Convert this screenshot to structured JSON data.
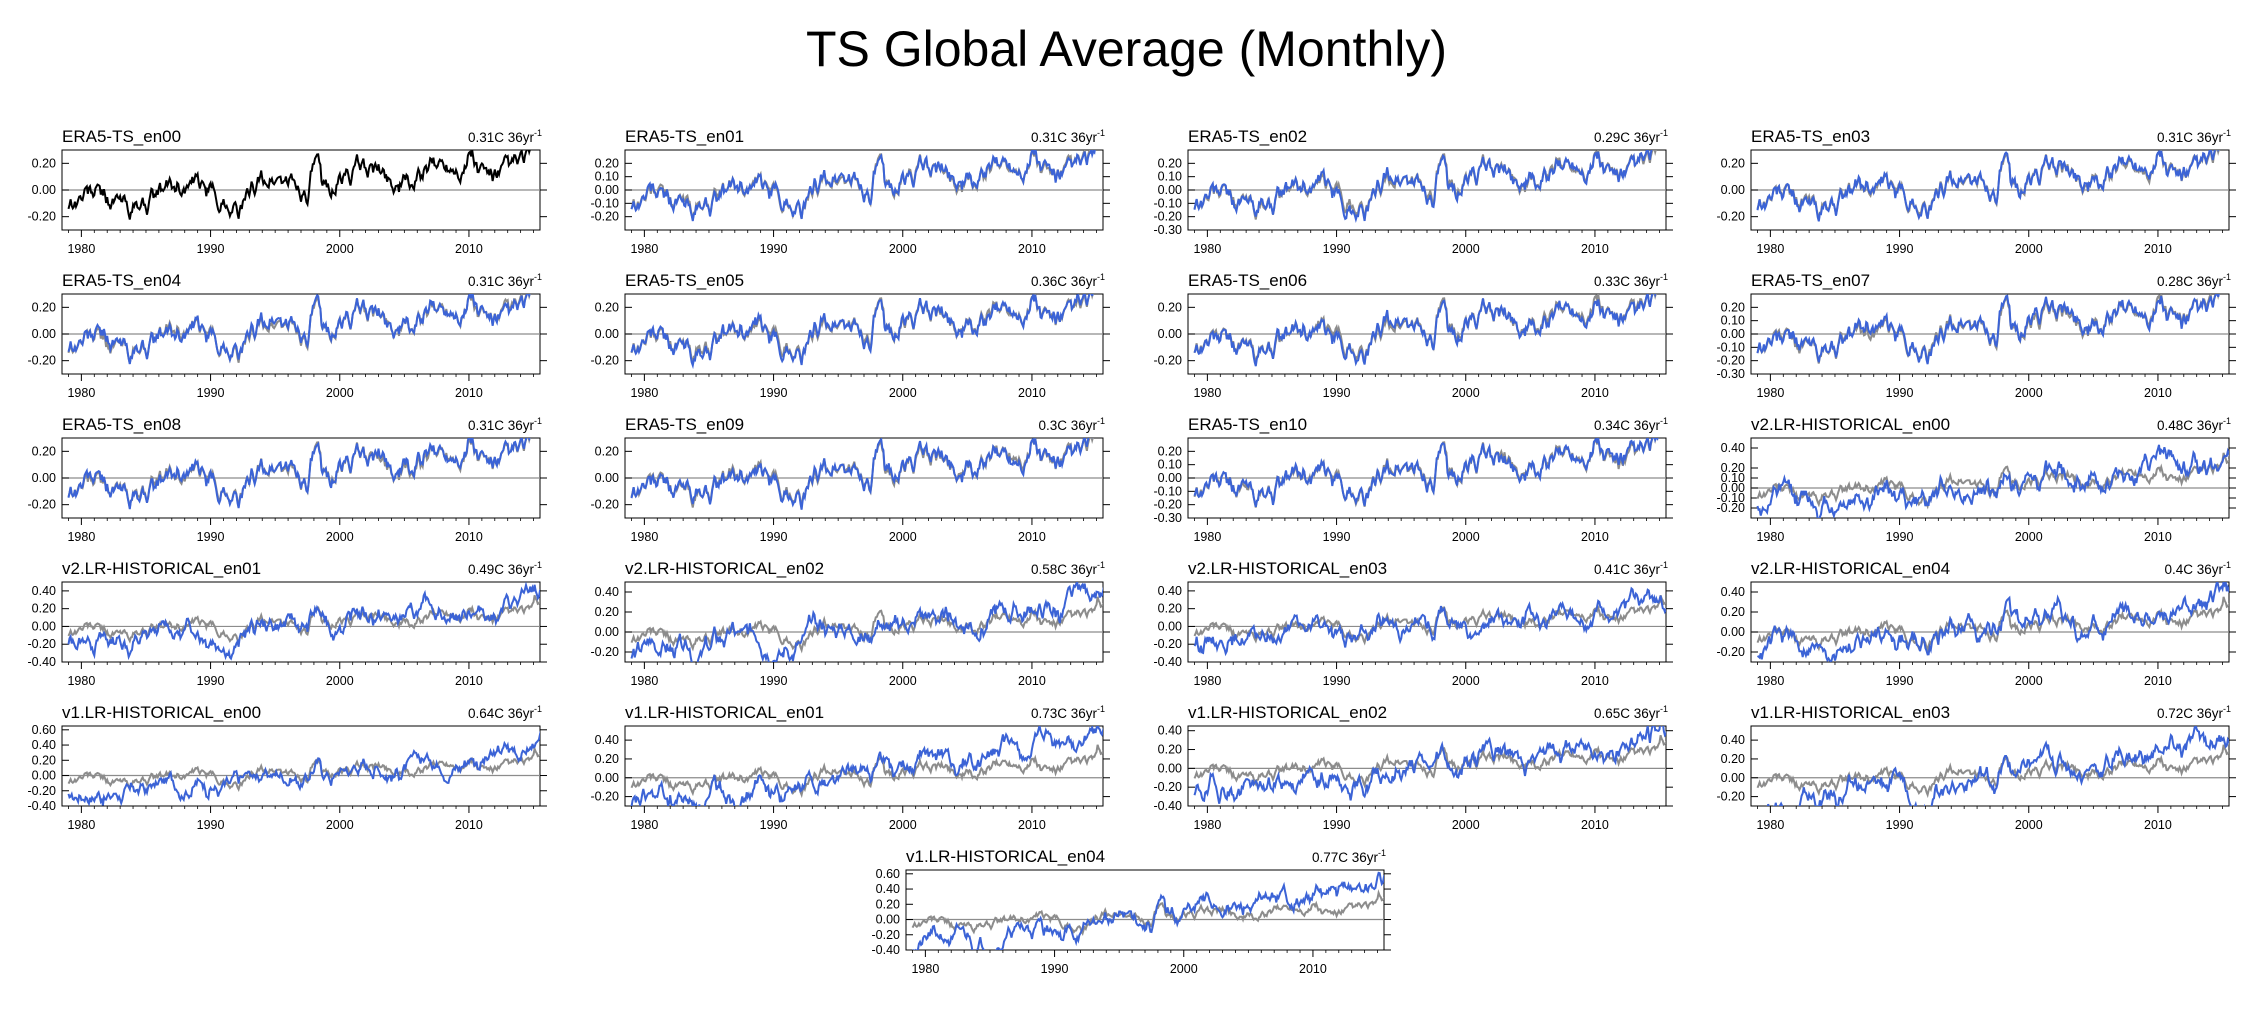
{
  "title": "TS Global Average (Monthly)",
  "colors": {
    "reference": "#000000",
    "ensemble": "#3b63d6",
    "background_ref": "#8c8c8c",
    "zero_line": "#8c8c8c"
  },
  "chart_data": {
    "type": "line",
    "x_range": [
      1978.5,
      2015.5
    ],
    "x_ticks": [
      1980,
      1990,
      2000,
      2010
    ],
    "x_ticks_labels": [
      "1980",
      "1990",
      "2000",
      "2010"
    ],
    "trend_units": "C 36yr",
    "trend_exp": "-1",
    "panels": [
      {
        "id": "ERA5-TS_en00",
        "title": "ERA5-TS_en00",
        "trend": "0.31",
        "trend_label": "0.31C 36yr",
        "y_range": [
          -0.3,
          0.3
        ],
        "y_ticks": [
          -0.2,
          0,
          0.2
        ],
        "y_tick_labels": [
          "-0.20",
          "0.00",
          "0.20"
        ],
        "series_kind": "reference",
        "bg_series": false,
        "drift": 0.0,
        "amp": 1.0,
        "seed": 1
      },
      {
        "id": "ERA5-TS_en01",
        "title": "ERA5-TS_en01",
        "trend": "0.31",
        "trend_label": "0.31C 36yr",
        "y_range": [
          -0.3,
          0.3
        ],
        "y_ticks": [
          -0.2,
          -0.1,
          0,
          0.1,
          0.2
        ],
        "y_tick_labels": [
          "-0.20",
          "-0.10",
          "0.00",
          "0.10",
          "0.20"
        ],
        "series_kind": "era",
        "bg_series": true,
        "drift": 0.0,
        "amp": 1.0,
        "seed": 2
      },
      {
        "id": "ERA5-TS_en02",
        "title": "ERA5-TS_en02",
        "trend": "0.29",
        "trend_label": "0.29C 36yr",
        "y_range": [
          -0.3,
          0.3
        ],
        "y_ticks": [
          -0.3,
          -0.2,
          -0.1,
          0,
          0.1,
          0.2
        ],
        "y_tick_labels": [
          "-0.30",
          "-0.20",
          "-0.10",
          "0.00",
          "0.10",
          "0.20"
        ],
        "series_kind": "era",
        "bg_series": true,
        "drift": 0.0,
        "amp": 1.0,
        "seed": 3
      },
      {
        "id": "ERA5-TS_en03",
        "title": "ERA5-TS_en03",
        "trend": "0.31",
        "trend_label": "0.31C 36yr",
        "y_range": [
          -0.3,
          0.3
        ],
        "y_ticks": [
          -0.2,
          0,
          0.2
        ],
        "y_tick_labels": [
          "-0.20",
          "0.00",
          "0.20"
        ],
        "series_kind": "era",
        "bg_series": true,
        "drift": 0.0,
        "amp": 1.0,
        "seed": 4
      },
      {
        "id": "ERA5-TS_en04",
        "title": "ERA5-TS_en04",
        "trend": "0.31",
        "trend_label": "0.31C 36yr",
        "y_range": [
          -0.3,
          0.3
        ],
        "y_ticks": [
          -0.2,
          0,
          0.2
        ],
        "y_tick_labels": [
          "-0.20",
          "0.00",
          "0.20"
        ],
        "series_kind": "era",
        "bg_series": true,
        "drift": 0.0,
        "amp": 1.0,
        "seed": 5
      },
      {
        "id": "ERA5-TS_en05",
        "title": "ERA5-TS_en05",
        "trend": "0.36",
        "trend_label": "0.36C 36yr",
        "y_range": [
          -0.3,
          0.3
        ],
        "y_ticks": [
          -0.2,
          0,
          0.2
        ],
        "y_tick_labels": [
          "-0.20",
          "0.00",
          "0.20"
        ],
        "series_kind": "era",
        "bg_series": true,
        "drift": 0.0,
        "amp": 1.0,
        "seed": 6
      },
      {
        "id": "ERA5-TS_en06",
        "title": "ERA5-TS_en06",
        "trend": "0.33",
        "trend_label": "0.33C 36yr",
        "y_range": [
          -0.3,
          0.3
        ],
        "y_ticks": [
          -0.2,
          0,
          0.2
        ],
        "y_tick_labels": [
          "-0.20",
          "0.00",
          "0.20"
        ],
        "series_kind": "era",
        "bg_series": true,
        "drift": 0.0,
        "amp": 1.0,
        "seed": 7
      },
      {
        "id": "ERA5-TS_en07",
        "title": "ERA5-TS_en07",
        "trend": "0.28",
        "trend_label": "0.28C 36yr",
        "y_range": [
          -0.3,
          0.3
        ],
        "y_ticks": [
          -0.3,
          -0.2,
          -0.1,
          0,
          0.1,
          0.2
        ],
        "y_tick_labels": [
          "-0.30",
          "-0.20",
          "-0.10",
          "0.00",
          "0.10",
          "0.20"
        ],
        "series_kind": "era",
        "bg_series": true,
        "drift": 0.0,
        "amp": 1.0,
        "seed": 8
      },
      {
        "id": "ERA5-TS_en08",
        "title": "ERA5-TS_en08",
        "trend": "0.31",
        "trend_label": "0.31C 36yr",
        "y_range": [
          -0.3,
          0.3
        ],
        "y_ticks": [
          -0.2,
          0,
          0.2
        ],
        "y_tick_labels": [
          "-0.20",
          "0.00",
          "0.20"
        ],
        "series_kind": "era",
        "bg_series": true,
        "drift": 0.0,
        "amp": 1.0,
        "seed": 9
      },
      {
        "id": "ERA5-TS_en09",
        "title": "ERA5-TS_en09",
        "trend": "0.3",
        "trend_label": "0.3C 36yr",
        "y_range": [
          -0.3,
          0.3
        ],
        "y_ticks": [
          -0.2,
          0,
          0.2
        ],
        "y_tick_labels": [
          "-0.20",
          "0.00",
          "0.20"
        ],
        "series_kind": "era",
        "bg_series": true,
        "drift": 0.0,
        "amp": 1.0,
        "seed": 10
      },
      {
        "id": "ERA5-TS_en10",
        "title": "ERA5-TS_en10",
        "trend": "0.34",
        "trend_label": "0.34C 36yr",
        "y_range": [
          -0.3,
          0.3
        ],
        "y_ticks": [
          -0.3,
          -0.2,
          -0.1,
          0,
          0.1,
          0.2
        ],
        "y_tick_labels": [
          "-0.30",
          "-0.20",
          "-0.10",
          "0.00",
          "0.10",
          "0.20"
        ],
        "series_kind": "era",
        "bg_series": true,
        "drift": 0.0,
        "amp": 1.0,
        "seed": 11
      },
      {
        "id": "v2.LR-HISTORICAL_en00",
        "title": "v2.LR-HISTORICAL_en00",
        "trend": "0.48",
        "trend_label": "0.48C 36yr",
        "y_range": [
          -0.3,
          0.5
        ],
        "y_ticks": [
          -0.2,
          -0.1,
          0,
          0.1,
          0.2,
          0.4
        ],
        "y_tick_labels": [
          "-0.20",
          "-0.10",
          "0.00",
          "0.10",
          "0.20",
          "0.40"
        ],
        "series_kind": "model",
        "bg_series": true,
        "drift": 0.06,
        "amp": 1.4,
        "seed": 12
      },
      {
        "id": "v2.LR-HISTORICAL_en01",
        "title": "v2.LR-HISTORICAL_en01",
        "trend": "0.49",
        "trend_label": "0.49C 36yr",
        "y_range": [
          -0.4,
          0.5
        ],
        "y_ticks": [
          -0.4,
          -0.2,
          0,
          0.2,
          0.4
        ],
        "y_tick_labels": [
          "-0.40",
          "-0.20",
          "0.00",
          "0.20",
          "0.40"
        ],
        "series_kind": "model",
        "bg_series": true,
        "drift": 0.06,
        "amp": 1.4,
        "seed": 13
      },
      {
        "id": "v2.LR-HISTORICAL_en02",
        "title": "v2.LR-HISTORICAL_en02",
        "trend": "0.58",
        "trend_label": "0.58C 36yr",
        "y_range": [
          -0.3,
          0.5
        ],
        "y_ticks": [
          -0.2,
          0,
          0.2,
          0.4
        ],
        "y_tick_labels": [
          "-0.20",
          "0.00",
          "0.20",
          "0.40"
        ],
        "series_kind": "model",
        "bg_series": true,
        "drift": 0.08,
        "amp": 1.4,
        "seed": 14
      },
      {
        "id": "v2.LR-HISTORICAL_en03",
        "title": "v2.LR-HISTORICAL_en03",
        "trend": "0.41",
        "trend_label": "0.41C 36yr",
        "y_range": [
          -0.4,
          0.5
        ],
        "y_ticks": [
          -0.4,
          -0.2,
          0,
          0.2,
          0.4
        ],
        "y_tick_labels": [
          "-0.40",
          "-0.20",
          "0.00",
          "0.20",
          "0.40"
        ],
        "series_kind": "model",
        "bg_series": true,
        "drift": 0.05,
        "amp": 1.4,
        "seed": 15
      },
      {
        "id": "v2.LR-HISTORICAL_en04",
        "title": "v2.LR-HISTORICAL_en04",
        "trend": "0.4",
        "trend_label": "0.4C 36yr",
        "y_range": [
          -0.3,
          0.5
        ],
        "y_ticks": [
          -0.2,
          0,
          0.2,
          0.4
        ],
        "y_tick_labels": [
          "-0.20",
          "0.00",
          "0.20",
          "0.40"
        ],
        "series_kind": "model",
        "bg_series": true,
        "drift": 0.05,
        "amp": 1.4,
        "seed": 16
      },
      {
        "id": "v1.LR-HISTORICAL_en00",
        "title": "v1.LR-HISTORICAL_en00",
        "trend": "0.64",
        "trend_label": "0.64C 36yr",
        "y_range": [
          -0.4,
          0.65
        ],
        "y_ticks": [
          -0.4,
          -0.2,
          0,
          0.2,
          0.4,
          0.6
        ],
        "y_tick_labels": [
          "-0.40",
          "-0.20",
          "0.00",
          "0.20",
          "0.40",
          "0.60"
        ],
        "series_kind": "model",
        "bg_series": true,
        "drift": 0.1,
        "amp": 1.5,
        "seed": 17
      },
      {
        "id": "v1.LR-HISTORICAL_en01",
        "title": "v1.LR-HISTORICAL_en01",
        "trend": "0.73",
        "trend_label": "0.73C 36yr",
        "y_range": [
          -0.3,
          0.55
        ],
        "y_ticks": [
          -0.2,
          0,
          0.2,
          0.4
        ],
        "y_tick_labels": [
          "-0.20",
          "0.00",
          "0.20",
          "0.40"
        ],
        "series_kind": "model",
        "bg_series": true,
        "drift": 0.12,
        "amp": 1.5,
        "seed": 18
      },
      {
        "id": "v1.LR-HISTORICAL_en02",
        "title": "v1.LR-HISTORICAL_en02",
        "trend": "0.65",
        "trend_label": "0.65C 36yr",
        "y_range": [
          -0.4,
          0.45
        ],
        "y_ticks": [
          -0.4,
          -0.2,
          0,
          0.2,
          0.4
        ],
        "y_tick_labels": [
          "-0.40",
          "-0.20",
          "0.00",
          "0.20",
          "0.40"
        ],
        "series_kind": "model",
        "bg_series": true,
        "drift": 0.1,
        "amp": 1.5,
        "seed": 19
      },
      {
        "id": "v1.LR-HISTORICAL_en03",
        "title": "v1.LR-HISTORICAL_en03",
        "trend": "0.72",
        "trend_label": "0.72C 36yr",
        "y_range": [
          -0.3,
          0.55
        ],
        "y_ticks": [
          -0.2,
          0,
          0.2,
          0.4
        ],
        "y_tick_labels": [
          "-0.20",
          "0.00",
          "0.20",
          "0.40"
        ],
        "series_kind": "model",
        "bg_series": true,
        "drift": 0.12,
        "amp": 1.5,
        "seed": 20
      },
      {
        "id": "v1.LR-HISTORICAL_en04",
        "title": "v1.LR-HISTORICAL_en04",
        "trend": "0.77",
        "trend_label": "0.77C 36yr",
        "y_range": [
          -0.4,
          0.65
        ],
        "y_ticks": [
          -0.4,
          -0.2,
          0,
          0.2,
          0.4,
          0.6
        ],
        "y_tick_labels": [
          "-0.40",
          "-0.20",
          "0.00",
          "0.20",
          "0.40",
          "0.60"
        ],
        "series_kind": "model",
        "bg_series": true,
        "drift": 0.13,
        "amp": 1.5,
        "seed": 21
      }
    ]
  }
}
